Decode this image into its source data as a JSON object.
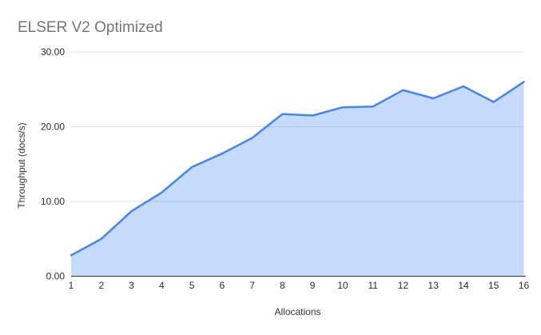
{
  "chart_data": {
    "type": "area",
    "title": "ELSER V2 Optimized",
    "xlabel": "Allocations",
    "ylabel": "Throughput (docs/s)",
    "categories": [
      1,
      2,
      3,
      4,
      5,
      6,
      7,
      8,
      9,
      10,
      11,
      12,
      13,
      14,
      15,
      16
    ],
    "series": [
      {
        "name": "Throughput",
        "values": [
          2.8,
          5.0,
          8.7,
          11.2,
          14.6,
          16.4,
          18.5,
          21.7,
          21.5,
          22.6,
          22.7,
          24.9,
          23.8,
          25.4,
          23.3,
          26.0
        ]
      }
    ],
    "ylim": [
      0,
      30
    ],
    "yticks": [
      "0.00",
      "10.00",
      "20.00",
      "30.00"
    ],
    "grid": true,
    "legend": "none",
    "colors": {
      "line": "#4285f4",
      "fill": "#4285f4",
      "fill_opacity": 0.3,
      "gridline": "#e0e0e0",
      "axis_line": "#333333",
      "tick_label": "#2b2b2b",
      "title": "#757575"
    }
  }
}
